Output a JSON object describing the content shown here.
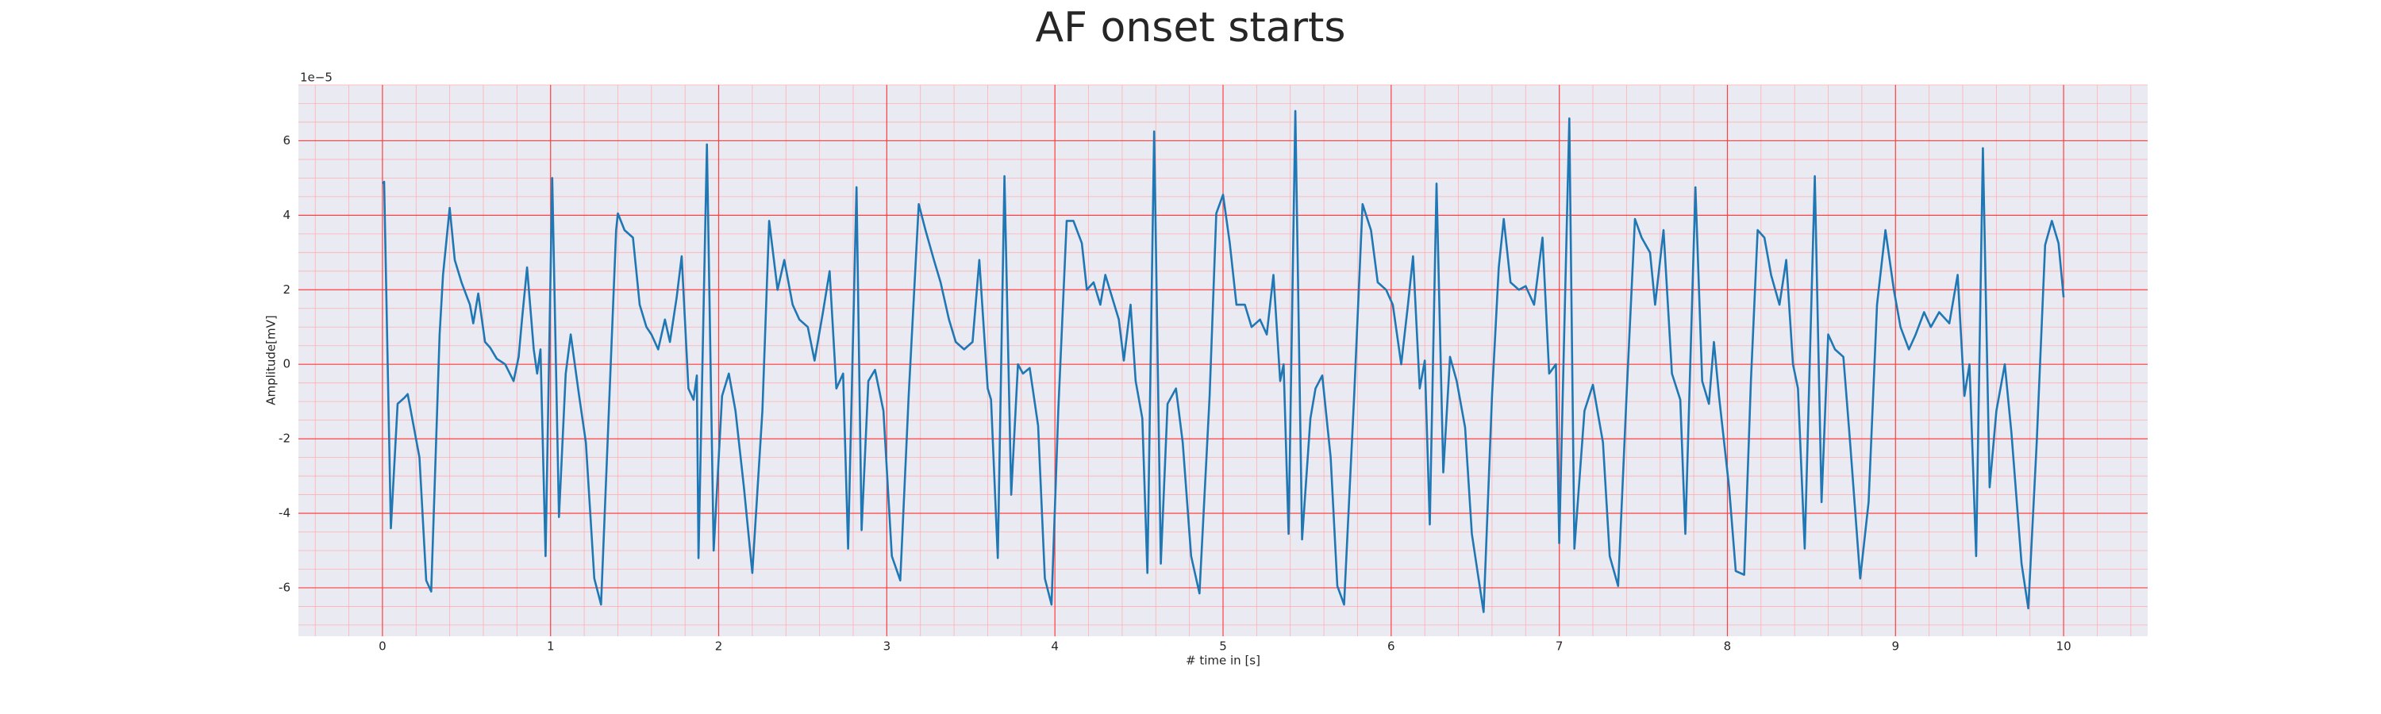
{
  "chart_data": {
    "type": "line",
    "title": "AF onset starts",
    "xlabel": "# time in [s]",
    "ylabel": "Amplitude[mV]",
    "y_offset_text": "1e−5",
    "color": "#1f77b4",
    "grid": true,
    "minor_grid": true,
    "xlim": [
      -0.5,
      10.5
    ],
    "ylim": [
      -7.3,
      7.5
    ],
    "xticks": [
      0,
      1,
      2,
      3,
      4,
      5,
      6,
      7,
      8,
      9,
      10
    ],
    "yticks": [
      -6,
      -4,
      -2,
      0,
      2,
      4,
      6
    ],
    "x": [
      0,
      0.01,
      0.05,
      0.09,
      0.13,
      0.15,
      0.22,
      0.26,
      0.29,
      0.34,
      0.36,
      0.4,
      0.43,
      0.47,
      0.52,
      0.54,
      0.57,
      0.61,
      0.64,
      0.68,
      0.73,
      0.78,
      0.81,
      0.83,
      0.86,
      0.9,
      0.92,
      0.94,
      0.97,
      1.01,
      1.05,
      1.09,
      1.12,
      1.17,
      1.21,
      1.26,
      1.3,
      1.35,
      1.39,
      1.4,
      1.44,
      1.49,
      1.53,
      1.57,
      1.6,
      1.64,
      1.68,
      1.71,
      1.75,
      1.78,
      1.82,
      1.85,
      1.87,
      1.88,
      1.93,
      1.97,
      2.02,
      2.06,
      2.1,
      2.15,
      2.2,
      2.26,
      2.3,
      2.35,
      2.39,
      2.44,
      2.48,
      2.53,
      2.57,
      2.62,
      2.66,
      2.7,
      2.74,
      2.77,
      2.82,
      2.85,
      2.89,
      2.93,
      2.98,
      3.03,
      3.08,
      3.13,
      3.19,
      3.23,
      3.28,
      3.32,
      3.37,
      3.41,
      3.46,
      3.51,
      3.55,
      3.6,
      3.62,
      3.66,
      3.7,
      3.74,
      3.78,
      3.81,
      3.85,
      3.9,
      3.94,
      3.98,
      4.02,
      4.07,
      4.11,
      4.16,
      4.19,
      4.23,
      4.27,
      4.3,
      4.34,
      4.38,
      4.41,
      4.45,
      4.48,
      4.52,
      4.55,
      4.59,
      4.63,
      4.67,
      4.72,
      4.76,
      4.81,
      4.86,
      4.92,
      4.96,
      5.0,
      5.04,
      5.08,
      5.13,
      5.17,
      5.22,
      5.26,
      5.3,
      5.34,
      5.36,
      5.39,
      5.43,
      5.47,
      5.52,
      5.55,
      5.59,
      5.64,
      5.68,
      5.72,
      5.78,
      5.83,
      5.88,
      5.92,
      5.97,
      6.01,
      6.06,
      6.1,
      6.13,
      6.17,
      6.2,
      6.23,
      6.27,
      6.31,
      6.35,
      6.39,
      6.44,
      6.48,
      6.55,
      6.6,
      6.64,
      6.67,
      6.71,
      6.76,
      6.8,
      6.85,
      6.9,
      6.94,
      6.98,
      7.0,
      7.06,
      7.09,
      7.15,
      7.2,
      7.26,
      7.3,
      7.35,
      7.4,
      7.45,
      7.49,
      7.54,
      7.57,
      7.62,
      7.67,
      7.72,
      7.75,
      7.81,
      7.85,
      7.89,
      7.92,
      7.95,
      8.01,
      8.05,
      8.1,
      8.14,
      8.18,
      8.22,
      8.26,
      8.31,
      8.35,
      8.39,
      8.42,
      8.46,
      8.52,
      8.56,
      8.6,
      8.64,
      8.69,
      8.73,
      8.79,
      8.84,
      8.89,
      8.94,
      8.99,
      9.03,
      9.08,
      9.12,
      9.17,
      9.21,
      9.26,
      9.32,
      9.37,
      9.41,
      9.44,
      9.48,
      9.52,
      9.56,
      9.6,
      9.65,
      9.69,
      9.75,
      9.79,
      9.84,
      9.89,
      9.93,
      9.97,
      10.0
    ],
    "values": [
      4.85,
      4.9,
      -4.4,
      -1.06,
      -0.9,
      -0.8,
      -2.5,
      -5.8,
      -6.1,
      0.8,
      2.4,
      4.2,
      2.8,
      2.2,
      1.6,
      1.1,
      1.9,
      0.6,
      0.45,
      0.15,
      0,
      -0.45,
      0.2,
      1.2,
      2.6,
      0.4,
      -0.25,
      0.4,
      -5.15,
      5.0,
      -4.1,
      -0.25,
      0.8,
      -0.85,
      -2.1,
      -5.75,
      -6.45,
      -0.85,
      3.6,
      4.05,
      3.6,
      3.4,
      1.6,
      1.0,
      0.8,
      0.4,
      1.2,
      0.6,
      1.8,
      2.9,
      -0.65,
      -0.95,
      -0.3,
      -5.2,
      5.9,
      -5.0,
      -0.85,
      -0.25,
      -1.25,
      -3.3,
      -5.6,
      -1.25,
      3.85,
      2.0,
      2.8,
      1.6,
      1.2,
      1.0,
      0.1,
      1.4,
      2.5,
      -0.65,
      -0.25,
      -4.95,
      4.75,
      -4.45,
      -0.45,
      -0.15,
      -1.25,
      -5.15,
      -5.8,
      -0.85,
      4.3,
      3.6,
      2.8,
      2.2,
      1.2,
      0.6,
      0.4,
      0.6,
      2.8,
      -0.65,
      -0.95,
      -5.2,
      5.05,
      -3.5,
      0,
      -0.25,
      -0.1,
      -1.65,
      -5.75,
      -6.45,
      -1.25,
      3.85,
      3.85,
      3.25,
      2.0,
      2.2,
      1.6,
      2.4,
      1.8,
      1.2,
      0.1,
      1.6,
      -0.45,
      -1.45,
      -5.6,
      6.25,
      -5.35,
      -1.06,
      -0.65,
      -2.1,
      -5.15,
      -6.15,
      -0.85,
      4.05,
      4.55,
      3.25,
      1.6,
      1.6,
      1.0,
      1.2,
      0.8,
      2.4,
      -0.45,
      0,
      -4.55,
      6.8,
      -4.7,
      -1.45,
      -0.65,
      -0.3,
      -2.5,
      -5.95,
      -6.45,
      -0.85,
      4.3,
      3.6,
      2.2,
      2.0,
      1.6,
      0,
      1.6,
      2.9,
      -0.65,
      0.1,
      -4.3,
      4.85,
      -2.9,
      0.2,
      -0.45,
      -1.7,
      -4.55,
      -6.65,
      -0.85,
      2.6,
      3.9,
      2.2,
      2.0,
      2.1,
      1.6,
      3.4,
      -0.25,
      0,
      -4.8,
      6.6,
      -4.95,
      -1.25,
      -0.55,
      -2.1,
      -5.15,
      -5.95,
      -0.85,
      3.9,
      3.4,
      3.0,
      1.6,
      3.6,
      -0.25,
      -0.95,
      -4.55,
      4.75,
      -0.45,
      -1.06,
      0.6,
      -0.85,
      -3.3,
      -5.55,
      -5.65,
      -0.45,
      3.6,
      3.4,
      2.4,
      1.6,
      2.8,
      0,
      -0.65,
      -4.95,
      5.05,
      -3.7,
      0.8,
      0.4,
      0.2,
      -2.1,
      -5.75,
      -3.7,
      1.6,
      3.6,
      2.0,
      1.0,
      0.4,
      0.8,
      1.4,
      1.0,
      1.4,
      1.1,
      2.4,
      -0.85,
      0,
      -5.15,
      5.8,
      -3.3,
      -1.25,
      0,
      -1.85,
      -5.35,
      -6.55,
      -2.1,
      3.2,
      3.85,
      3.25,
      1.8
    ]
  }
}
